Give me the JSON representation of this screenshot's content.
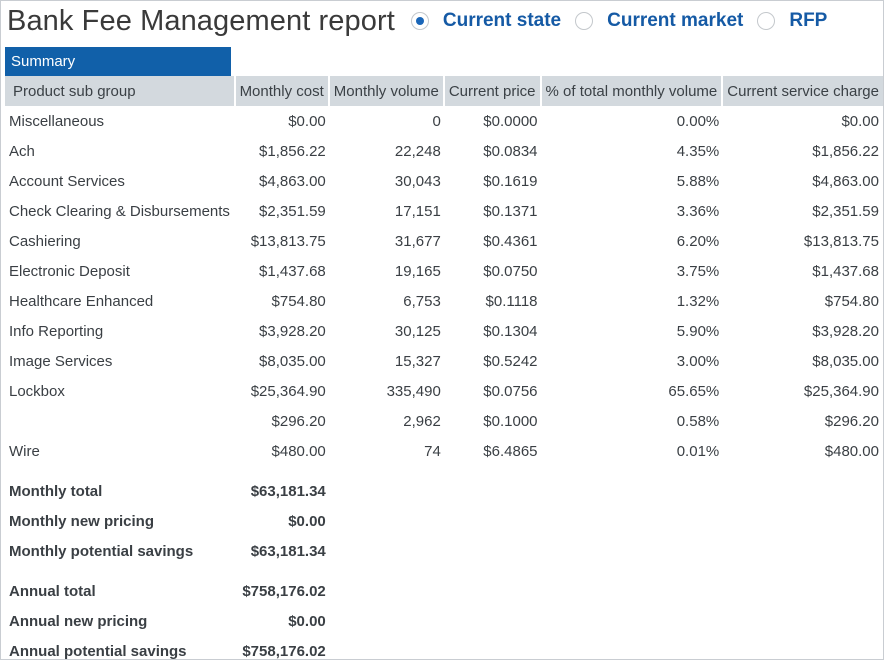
{
  "title": "Bank Fee Management report",
  "view_options": [
    {
      "label": "Current state",
      "selected": true
    },
    {
      "label": "Current market",
      "selected": false
    },
    {
      "label": "RFP",
      "selected": false
    }
  ],
  "tab": "Summary",
  "columns": [
    "Product sub group",
    "Monthly cost",
    "Monthly volume",
    "Current price",
    "% of total monthly volume",
    "Current service charge"
  ],
  "rows": [
    {
      "name": "Miscellaneous",
      "cost": "$0.00",
      "volume": "0",
      "price": "$0.0000",
      "pct": "0.00%",
      "charge": "$0.00"
    },
    {
      "name": "Ach",
      "cost": "$1,856.22",
      "volume": "22,248",
      "price": "$0.0834",
      "pct": "4.35%",
      "charge": "$1,856.22"
    },
    {
      "name": "Account Services",
      "cost": "$4,863.00",
      "volume": "30,043",
      "price": "$0.1619",
      "pct": "5.88%",
      "charge": "$4,863.00"
    },
    {
      "name": "Check Clearing & Disbursements",
      "cost": "$2,351.59",
      "volume": "17,151",
      "price": "$0.1371",
      "pct": "3.36%",
      "charge": "$2,351.59"
    },
    {
      "name": "Cashiering",
      "cost": "$13,813.75",
      "volume": "31,677",
      "price": "$0.4361",
      "pct": "6.20%",
      "charge": "$13,813.75"
    },
    {
      "name": "Electronic Deposit",
      "cost": "$1,437.68",
      "volume": "19,165",
      "price": "$0.0750",
      "pct": "3.75%",
      "charge": "$1,437.68"
    },
    {
      "name": "Healthcare Enhanced",
      "cost": "$754.80",
      "volume": "6,753",
      "price": "$0.1118",
      "pct": "1.32%",
      "charge": "$754.80"
    },
    {
      "name": "Info Reporting",
      "cost": "$3,928.20",
      "volume": "30,125",
      "price": "$0.1304",
      "pct": "5.90%",
      "charge": "$3,928.20"
    },
    {
      "name": "Image Services",
      "cost": "$8,035.00",
      "volume": "15,327",
      "price": "$0.5242",
      "pct": "3.00%",
      "charge": "$8,035.00"
    },
    {
      "name": "Lockbox",
      "cost": "$25,364.90",
      "volume": "335,490",
      "price": "$0.0756",
      "pct": "65.65%",
      "charge": "$25,364.90"
    },
    {
      "name": "",
      "cost": "$296.20",
      "volume": "2,962",
      "price": "$0.1000",
      "pct": "0.58%",
      "charge": "$296.20"
    },
    {
      "name": "Wire",
      "cost": "$480.00",
      "volume": "74",
      "price": "$6.4865",
      "pct": "0.01%",
      "charge": "$480.00"
    }
  ],
  "monthly_totals": [
    {
      "label": "Monthly total",
      "value": "$63,181.34"
    },
    {
      "label": "Monthly new pricing",
      "value": "$0.00"
    },
    {
      "label": "Monthly potential savings",
      "value": "$63,181.34"
    }
  ],
  "annual_totals": [
    {
      "label": "Annual total",
      "value": "$758,176.02"
    },
    {
      "label": "Annual new pricing",
      "value": "$0.00"
    },
    {
      "label": "Annual potential savings",
      "value": "$758,176.02"
    }
  ]
}
